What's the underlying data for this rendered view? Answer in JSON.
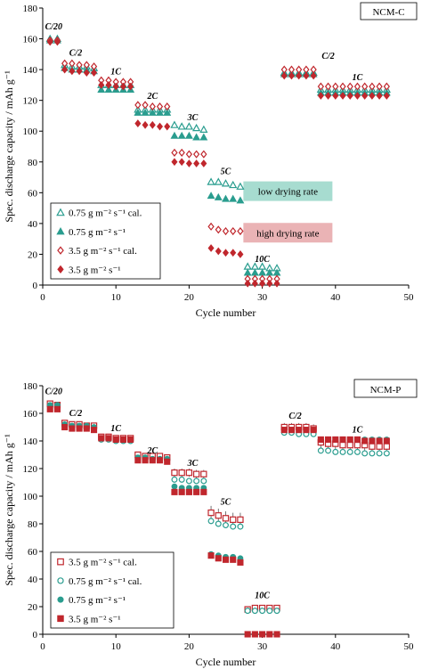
{
  "chart_data": [
    {
      "type": "scatter",
      "panel_label": "NCM-C",
      "xlabel": "Cycle number",
      "ylabel": "Spec. discharge capacity / mAh g⁻¹",
      "xlim": [
        0,
        50
      ],
      "ylim": [
        0,
        180
      ],
      "xticks": [
        "0",
        "10",
        "20",
        "30",
        "40",
        "50"
      ],
      "yticks": [
        "0",
        "20",
        "40",
        "60",
        "80",
        "100",
        "120",
        "140",
        "160",
        "180"
      ],
      "rate_labels": [
        {
          "text": "C/20",
          "x": 1.5,
          "y": 166
        },
        {
          "text": "C/2",
          "x": 4.5,
          "y": 149
        },
        {
          "text": "1C",
          "x": 10,
          "y": 137
        },
        {
          "text": "2C",
          "x": 15,
          "y": 121
        },
        {
          "text": "3C",
          "x": 20.5,
          "y": 107
        },
        {
          "text": "5C",
          "x": 25,
          "y": 72
        },
        {
          "text": "10C",
          "x": 30,
          "y": 15
        },
        {
          "text": "C/2",
          "x": 39,
          "y": 147
        },
        {
          "text": "1C",
          "x": 43,
          "y": 133
        }
      ],
      "annotations": [
        {
          "text": "low drying rate",
          "color": "#a7dcd0",
          "x": 33.5,
          "y": 61
        },
        {
          "text": "high drying rate",
          "color": "#eab3b5",
          "x": 33.5,
          "y": 34
        }
      ],
      "legend_position": "bottom-left",
      "series": [
        {
          "name": "0.75 g m⁻² s⁻¹ cal.",
          "marker": "triangle-open",
          "color": "#2a9d8f",
          "x": [
            1,
            2,
            3,
            4,
            5,
            6,
            7,
            8,
            9,
            10,
            11,
            12,
            13,
            14,
            15,
            16,
            17,
            18,
            19,
            20,
            21,
            22,
            23,
            24,
            25,
            26,
            27,
            28,
            29,
            30,
            31,
            32,
            33,
            34,
            35,
            36,
            37,
            38,
            39,
            40,
            41,
            42,
            43,
            44,
            45,
            46,
            47
          ],
          "y": [
            160,
            160,
            143,
            142,
            142,
            142,
            141,
            130,
            130,
            130,
            130,
            130,
            114,
            114,
            114,
            114,
            114,
            104,
            103,
            103,
            102,
            101,
            67,
            67,
            66,
            65,
            64,
            12,
            12,
            12,
            11,
            11,
            138,
            138,
            138,
            138,
            138,
            127,
            127,
            127,
            127,
            127,
            127,
            127,
            127,
            127,
            127
          ]
        },
        {
          "name": "0.75 g m⁻² s⁻¹",
          "marker": "triangle-filled",
          "color": "#2a9d8f",
          "x": [
            1,
            2,
            3,
            4,
            5,
            6,
            7,
            8,
            9,
            10,
            11,
            12,
            13,
            14,
            15,
            16,
            17,
            18,
            19,
            20,
            21,
            22,
            23,
            24,
            25,
            26,
            27,
            28,
            29,
            30,
            31,
            32,
            33,
            34,
            35,
            36,
            37,
            38,
            39,
            40,
            41,
            42,
            43,
            44,
            45,
            46,
            47
          ],
          "y": [
            159,
            159,
            141,
            140,
            140,
            140,
            139,
            127,
            127,
            127,
            127,
            127,
            112,
            112,
            112,
            112,
            112,
            97,
            97,
            97,
            96,
            96,
            58,
            57,
            56,
            56,
            55,
            8,
            8,
            8,
            8,
            8,
            137,
            137,
            137,
            137,
            137,
            125,
            125,
            125,
            125,
            125,
            125,
            125,
            125,
            125,
            125
          ]
        },
        {
          "name": "3.5 g m⁻² s⁻¹ cal.",
          "marker": "diamond-open",
          "color": "#c0272d",
          "x": [
            1,
            2,
            3,
            4,
            5,
            6,
            7,
            8,
            9,
            10,
            11,
            12,
            13,
            14,
            15,
            16,
            17,
            18,
            19,
            20,
            21,
            22,
            23,
            24,
            25,
            26,
            27,
            28,
            29,
            30,
            31,
            32,
            33,
            34,
            35,
            36,
            37,
            38,
            39,
            40,
            41,
            42,
            43,
            44,
            45,
            46,
            47
          ],
          "y": [
            159,
            159,
            144,
            144,
            143,
            143,
            142,
            133,
            133,
            132,
            132,
            132,
            117,
            117,
            116,
            116,
            116,
            86,
            86,
            85,
            85,
            85,
            38,
            36,
            35,
            35,
            35,
            4,
            4,
            4,
            4,
            4,
            140,
            140,
            140,
            140,
            140,
            129,
            129,
            129,
            129,
            129,
            129,
            129,
            129,
            129,
            129
          ]
        },
        {
          "name": "3.5 g m⁻² s⁻¹",
          "marker": "diamond-filled",
          "color": "#c0272d",
          "x": [
            1,
            2,
            3,
            4,
            5,
            6,
            7,
            8,
            9,
            10,
            11,
            12,
            13,
            14,
            15,
            16,
            17,
            18,
            19,
            20,
            21,
            22,
            23,
            24,
            25,
            26,
            27,
            28,
            29,
            30,
            31,
            32,
            33,
            34,
            35,
            36,
            37,
            38,
            39,
            40,
            41,
            42,
            43,
            44,
            45,
            46,
            47
          ],
          "y": [
            158,
            158,
            140,
            139,
            139,
            138,
            138,
            130,
            130,
            129,
            129,
            129,
            105,
            104,
            104,
            103,
            103,
            80,
            80,
            79,
            79,
            79,
            24,
            22,
            21,
            21,
            20,
            1,
            1,
            1,
            1,
            1,
            136,
            136,
            136,
            136,
            136,
            123,
            123,
            123,
            123,
            123,
            123,
            123,
            123,
            123,
            123
          ]
        }
      ]
    },
    {
      "type": "scatter",
      "panel_label": "NCM-P",
      "xlabel": "Cycle number",
      "ylabel": "Spec. discharge capacity / mAh g⁻¹",
      "xlim": [
        0,
        50
      ],
      "ylim": [
        0,
        180
      ],
      "xticks": [
        "0",
        "10",
        "20",
        "30",
        "40",
        "50"
      ],
      "yticks": [
        "0",
        "20",
        "40",
        "60",
        "80",
        "100",
        "120",
        "140",
        "160",
        "180"
      ],
      "rate_labels": [
        {
          "text": "C/20",
          "x": 1.5,
          "y": 174
        },
        {
          "text": "C/2",
          "x": 4.5,
          "y": 158
        },
        {
          "text": "1C",
          "x": 10,
          "y": 147
        },
        {
          "text": "2C",
          "x": 15,
          "y": 131
        },
        {
          "text": "3C",
          "x": 20.5,
          "y": 122
        },
        {
          "text": "5C",
          "x": 25,
          "y": 94
        },
        {
          "text": "10C",
          "x": 30,
          "y": 26
        },
        {
          "text": "C/2",
          "x": 34.5,
          "y": 156
        },
        {
          "text": "1C",
          "x": 43,
          "y": 146
        }
      ],
      "annotations": [],
      "legend_position": "bottom-left",
      "series": [
        {
          "name": "3.5 g m⁻² s⁻¹ cal.",
          "marker": "square-open",
          "color": "#c0272d",
          "x": [
            1,
            2,
            3,
            4,
            5,
            6,
            7,
            8,
            9,
            10,
            11,
            12,
            13,
            14,
            15,
            16,
            17,
            18,
            19,
            20,
            21,
            22,
            23,
            24,
            25,
            26,
            27,
            28,
            29,
            30,
            31,
            32,
            33,
            34,
            35,
            36,
            37,
            38,
            39,
            40,
            41,
            42,
            43,
            44,
            45,
            46,
            47
          ],
          "y": [
            167,
            166,
            153,
            152,
            152,
            151,
            151,
            143,
            143,
            142,
            142,
            142,
            130,
            129,
            129,
            129,
            128,
            117,
            117,
            117,
            116,
            116,
            88,
            86,
            84,
            83,
            83,
            18,
            19,
            19,
            19,
            19,
            150,
            150,
            150,
            150,
            149,
            139,
            138,
            138,
            137,
            137,
            137,
            137,
            136,
            136,
            136
          ],
          "err": [
            2,
            2,
            2,
            2,
            2,
            2,
            2,
            2,
            2,
            2,
            2,
            2,
            2,
            2,
            2,
            2,
            2,
            3,
            3,
            3,
            3,
            3,
            5,
            5,
            5,
            5,
            5,
            2,
            2,
            2,
            2,
            2,
            3,
            3,
            3,
            3,
            3,
            4,
            4,
            4,
            4,
            4,
            4,
            4,
            4,
            4,
            4
          ]
        },
        {
          "name": "0.75 g m⁻² s⁻¹ cal.",
          "marker": "circle-open",
          "color": "#2a9d8f",
          "x": [
            1,
            2,
            3,
            4,
            5,
            6,
            7,
            8,
            9,
            10,
            11,
            12,
            13,
            14,
            15,
            16,
            17,
            18,
            19,
            20,
            21,
            22,
            23,
            24,
            25,
            26,
            27,
            28,
            29,
            30,
            31,
            32,
            33,
            34,
            35,
            36,
            37,
            38,
            39,
            40,
            41,
            42,
            43,
            44,
            45,
            46,
            47
          ],
          "y": [
            165,
            164,
            151,
            150,
            150,
            149,
            149,
            141,
            141,
            140,
            140,
            140,
            127,
            127,
            126,
            126,
            126,
            112,
            112,
            111,
            111,
            111,
            82,
            80,
            79,
            78,
            78,
            17,
            17,
            17,
            17,
            17,
            146,
            146,
            145,
            145,
            145,
            133,
            133,
            132,
            132,
            132,
            132,
            131,
            131,
            131,
            131
          ]
        },
        {
          "name": "0.75 g m⁻² s⁻¹",
          "marker": "circle-filled",
          "color": "#2a9d8f",
          "x": [
            1,
            2,
            3,
            4,
            5,
            6,
            7,
            8,
            9,
            10,
            11,
            12,
            13,
            14,
            15,
            16,
            17,
            18,
            19,
            20,
            21,
            22,
            23,
            24,
            25,
            26,
            27,
            28,
            29,
            30,
            31,
            32,
            33,
            34,
            35,
            36,
            37,
            38,
            39,
            40,
            41,
            42,
            43,
            44,
            45,
            46,
            47
          ],
          "y": [
            166,
            166,
            152,
            151,
            151,
            151,
            150,
            142,
            142,
            141,
            141,
            141,
            128,
            128,
            127,
            127,
            127,
            107,
            106,
            106,
            106,
            106,
            58,
            57,
            56,
            56,
            55,
            0,
            0,
            0,
            0,
            0,
            148,
            148,
            148,
            148,
            148,
            141,
            141,
            141,
            141,
            141,
            141,
            141,
            141,
            141,
            141
          ]
        },
        {
          "name": "3.5 g m⁻² s⁻¹",
          "marker": "square-filled",
          "color": "#c0272d",
          "x": [
            1,
            2,
            3,
            4,
            5,
            6,
            7,
            8,
            9,
            10,
            11,
            12,
            13,
            14,
            15,
            16,
            17,
            18,
            19,
            20,
            21,
            22,
            23,
            24,
            25,
            26,
            27,
            28,
            29,
            30,
            31,
            32,
            33,
            34,
            35,
            36,
            37,
            38,
            39,
            40,
            41,
            42,
            43,
            44,
            45,
            46,
            47
          ],
          "y": [
            163,
            163,
            150,
            149,
            149,
            149,
            148,
            142,
            142,
            141,
            141,
            141,
            126,
            126,
            126,
            126,
            125,
            103,
            103,
            103,
            103,
            103,
            57,
            55,
            54,
            54,
            52,
            0,
            0,
            0,
            0,
            0,
            148,
            148,
            148,
            148,
            148,
            141,
            141,
            141,
            141,
            141,
            141,
            140,
            140,
            140,
            140
          ]
        }
      ]
    }
  ]
}
